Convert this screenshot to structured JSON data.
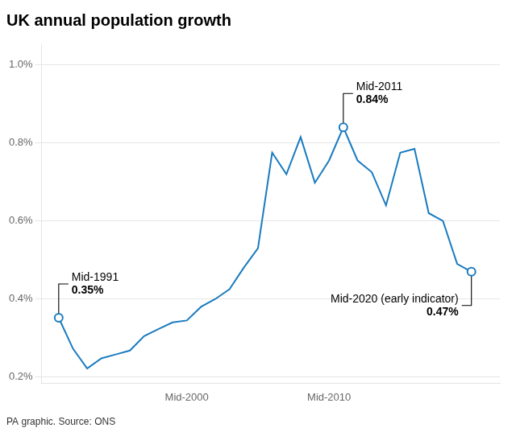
{
  "chart_data": {
    "type": "line",
    "title": "UK annual population growth",
    "source": "PA graphic. Source: ONS",
    "x": [
      1991,
      1992,
      1993,
      1994,
      1995,
      1996,
      1997,
      1998,
      1999,
      2000,
      2001,
      2002,
      2003,
      2004,
      2005,
      2006,
      2007,
      2008,
      2009,
      2010,
      2011,
      2012,
      2013,
      2014,
      2015,
      2016,
      2017,
      2018,
      2019,
      2020
    ],
    "values": [
      0.352,
      0.273,
      0.222,
      0.248,
      0.258,
      0.268,
      0.305,
      0.323,
      0.34,
      0.345,
      0.38,
      0.4,
      0.425,
      0.48,
      0.53,
      0.775,
      0.72,
      0.815,
      0.698,
      0.755,
      0.84,
      0.755,
      0.725,
      0.64,
      0.775,
      0.785,
      0.62,
      0.6,
      0.49,
      0.47
    ],
    "color": "#1a7bbf",
    "xlim": [
      1989.8,
      2022.0
    ],
    "xticks": [
      {
        "value": 2000,
        "label": "Mid-2000"
      },
      {
        "value": 2010,
        "label": "Mid-2010"
      }
    ],
    "ylim": [
      0.185,
      1.055
    ],
    "yticks": [
      {
        "value": 0.2,
        "label": "0.2%"
      },
      {
        "value": 0.4,
        "label": "0.4%"
      },
      {
        "value": 0.6,
        "label": "0.6%"
      },
      {
        "value": 0.8,
        "label": "0.8%"
      },
      {
        "value": 1.0,
        "label": "1.0%"
      }
    ],
    "grid": "y",
    "annotations": [
      {
        "x": 1991,
        "y": 0.352,
        "label": "Mid-1991",
        "value_label": "0.35%"
      },
      {
        "x": 2011,
        "y": 0.84,
        "label": "Mid-2011",
        "value_label": "0.84%"
      },
      {
        "x": 2020,
        "y": 0.47,
        "label": "Mid-2020 (early indicator)",
        "value_label": "0.47%"
      }
    ]
  }
}
